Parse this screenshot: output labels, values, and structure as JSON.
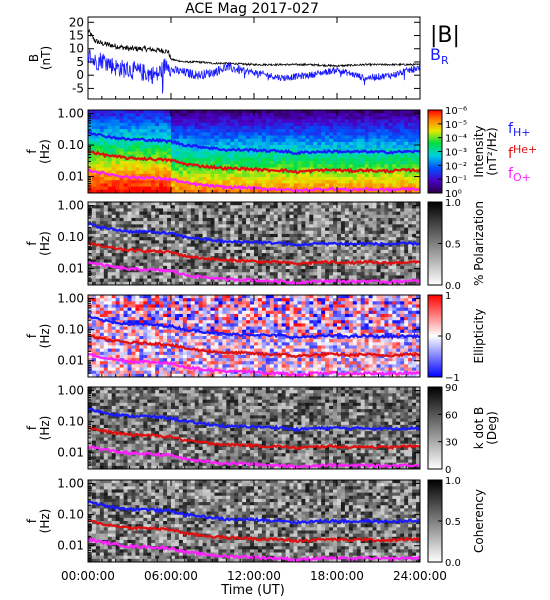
{
  "title": "ACE Mag 2017-027",
  "xaxis": {
    "label": "Time (UT)",
    "ticks": [
      "00:00:00",
      "06:00:00",
      "12:00:00",
      "18:00:00",
      "24:00:00"
    ],
    "tick_hours": [
      0,
      6,
      12,
      18,
      24
    ]
  },
  "colors": {
    "total_field": "#000000",
    "radial_field": "#1a1aff",
    "f_h": "#1a1aff",
    "f_he": "#e01010",
    "f_o": "#ff20ff"
  },
  "chart_data": [
    {
      "type": "line",
      "panel": "magnetic-field",
      "ylabel": "B\n(nT)",
      "ylim": [
        -9,
        22
      ],
      "yticks": [
        -5,
        0,
        5,
        10,
        15,
        20
      ],
      "legend": [
        "|B|",
        "B_R"
      ],
      "series": [
        {
          "name": "|B|",
          "x_hours": [
            0,
            0.5,
            1,
            2,
            3,
            4,
            5,
            5.8,
            6,
            7,
            8,
            9,
            10,
            12,
            14,
            16,
            18,
            20,
            22,
            24
          ],
          "values": [
            17,
            13,
            12,
            11,
            10,
            10,
            9.5,
            9,
            6,
            5,
            5,
            4.5,
            4.5,
            4,
            4,
            4,
            3.5,
            4,
            4,
            4
          ]
        },
        {
          "name": "B_R",
          "x_hours": [
            0,
            0.5,
            1,
            2,
            3,
            4,
            5,
            5.8,
            6,
            7,
            8,
            9,
            10,
            12,
            14,
            16,
            18,
            20,
            22,
            24
          ],
          "values": [
            8,
            5,
            6,
            3,
            2,
            1,
            0,
            5,
            2,
            1,
            0,
            1,
            3,
            1,
            -1,
            0,
            2,
            -1,
            0,
            3
          ]
        }
      ]
    },
    {
      "type": "heatmap",
      "panel": "intensity",
      "ylabel": "f\n(Hz)",
      "yscale": "log",
      "ylim": [
        0.003,
        1.3
      ],
      "yticks": [
        "1.00",
        "0.10",
        "0.01"
      ],
      "colorbar": {
        "label": "Intensity\n(nT²/Hz)",
        "ticks": [
          "10⁰",
          "10⁻¹",
          "10⁻²",
          "10⁻³",
          "10⁻⁴",
          "10⁻⁵",
          "10⁻⁶"
        ],
        "scale": "rainbow"
      },
      "legend": [
        "f_H+",
        "f_He+",
        "f_O+"
      ]
    },
    {
      "type": "heatmap",
      "panel": "polarization",
      "ylabel": "f\n(Hz)",
      "yscale": "log",
      "ylim": [
        0.003,
        1.3
      ],
      "yticks": [
        "1.00",
        "0.10",
        "0.01"
      ],
      "colorbar": {
        "label": "% Polarization",
        "ticks": [
          "0.0",
          "0.5",
          "1.0"
        ],
        "scale": "gray"
      }
    },
    {
      "type": "heatmap",
      "panel": "ellipticity",
      "ylabel": "f\n(Hz)",
      "yscale": "log",
      "ylim": [
        0.003,
        1.3
      ],
      "yticks": [
        "1.00",
        "0.10",
        "0.01"
      ],
      "colorbar": {
        "label": "Ellipticity",
        "ticks": [
          "−1",
          "0",
          "1"
        ],
        "scale": "bluewhitered"
      }
    },
    {
      "type": "heatmap",
      "panel": "wave-normal-angle",
      "ylabel": "f\n(Hz)",
      "yscale": "log",
      "ylim": [
        0.003,
        1.3
      ],
      "yticks": [
        "1.00",
        "0.10",
        "0.01"
      ],
      "colorbar": {
        "label": "k dot B\n(Deg)",
        "ticks": [
          "0",
          "30",
          "60",
          "90"
        ],
        "scale": "gray"
      }
    },
    {
      "type": "heatmap",
      "panel": "coherency",
      "ylabel": "f\n(Hz)",
      "yscale": "log",
      "ylim": [
        0.003,
        1.3
      ],
      "yticks": [
        "1.00",
        "0.10",
        "0.01"
      ],
      "colorbar": {
        "label": "Coherency",
        "ticks": [
          "0.0",
          "0.5",
          "1.0"
        ],
        "scale": "gray"
      }
    }
  ],
  "gyrofrequency_lines": {
    "x_hours": [
      0,
      1,
      2,
      3,
      4,
      5,
      6,
      7,
      8,
      9,
      10,
      11,
      12,
      13,
      14,
      15,
      16,
      17,
      18,
      19,
      20,
      21,
      22,
      23,
      24
    ],
    "f_h_hz": [
      0.26,
      0.2,
      0.17,
      0.15,
      0.15,
      0.14,
      0.13,
      0.1,
      0.09,
      0.08,
      0.07,
      0.07,
      0.07,
      0.065,
      0.065,
      0.055,
      0.06,
      0.062,
      0.063,
      0.06,
      0.062,
      0.06,
      0.06,
      0.062,
      0.062
    ],
    "f_he_hz": [
      0.065,
      0.05,
      0.043,
      0.038,
      0.037,
      0.035,
      0.033,
      0.025,
      0.022,
      0.02,
      0.018,
      0.018,
      0.017,
      0.016,
      0.016,
      0.014,
      0.015,
      0.016,
      0.016,
      0.015,
      0.016,
      0.015,
      0.015,
      0.016,
      0.016
    ],
    "f_o_hz": [
      0.016,
      0.013,
      0.011,
      0.0095,
      0.0093,
      0.0088,
      0.0083,
      0.0063,
      0.0055,
      0.005,
      0.0045,
      0.0045,
      0.0043,
      0.004,
      0.004,
      0.0035,
      0.0038,
      0.004,
      0.004,
      0.0038,
      0.004,
      0.0038,
      0.0038,
      0.004,
      0.004
    ]
  }
}
